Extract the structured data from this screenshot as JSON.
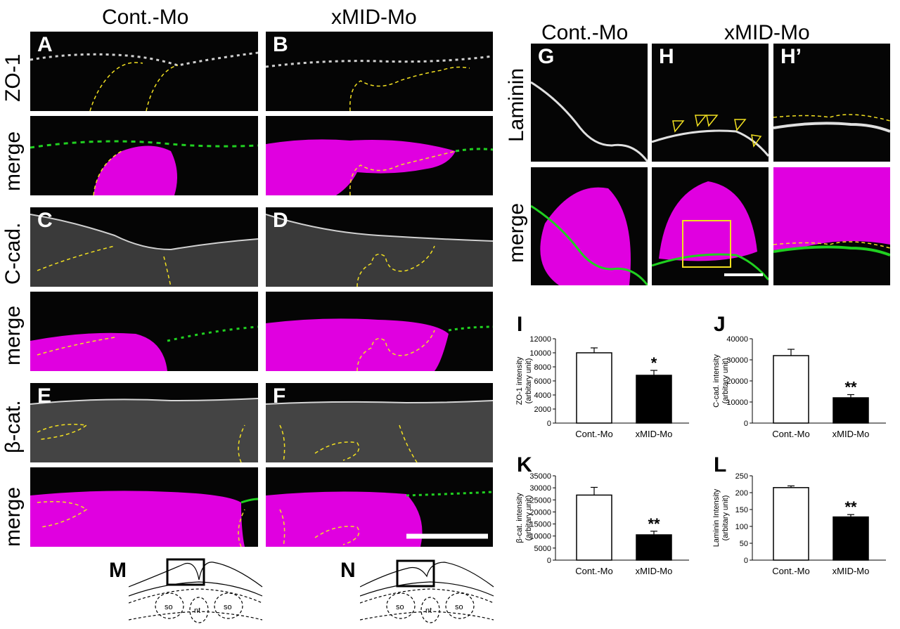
{
  "columns": {
    "left_ctrl": "Cont.-Mo",
    "left_mid": "xMID-Mo",
    "right_ctrl": "Cont.-Mo",
    "right_mid": "xMID-Mo"
  },
  "row_labels": {
    "zo1": "ZO-1",
    "merge": "merge",
    "ccad": "C-cad.",
    "bcat": "β-cat.",
    "laminin": "Laminin"
  },
  "panel_letters": {
    "A": "A",
    "B": "B",
    "C": "C",
    "D": "D",
    "E": "E",
    "F": "F",
    "G": "G",
    "H": "H",
    "Hp": "H’",
    "I": "I",
    "J": "J",
    "K": "K",
    "L": "L",
    "M": "M",
    "N": "N"
  },
  "schematic_labels": {
    "so": "so",
    "nt": "nt"
  },
  "colors": {
    "magenta": "#e000e0",
    "green": "#20d020",
    "yellow": "#f2e020",
    "gray": "#cfcfcf"
  },
  "chart_data": [
    {
      "id": "I",
      "type": "bar",
      "categories": [
        "Cont.-Mo",
        "xMID-Mo"
      ],
      "values": [
        10000,
        6800
      ],
      "errors": [
        700,
        700
      ],
      "fills": [
        "#ffffff",
        "#000000"
      ],
      "significance": [
        "",
        "*"
      ],
      "ylabel": [
        "ZO-1 intensity",
        "(arbitary unit)"
      ],
      "ylim": [
        0,
        12000
      ],
      "yticks": [
        "0",
        "2000",
        "4000",
        "6000",
        "8000",
        "10000",
        "12000"
      ]
    },
    {
      "id": "J",
      "type": "bar",
      "categories": [
        "Cont.-Mo",
        "xMID-Mo"
      ],
      "values": [
        32000,
        12000
      ],
      "errors": [
        3000,
        1500
      ],
      "fills": [
        "#ffffff",
        "#000000"
      ],
      "significance": [
        "",
        "**"
      ],
      "ylabel": [
        "C-cad. intensity",
        "(arbitary unit)"
      ],
      "ylim": [
        0,
        40000
      ],
      "yticks": [
        "0",
        "10000",
        "20000",
        "30000",
        "40000"
      ]
    },
    {
      "id": "K",
      "type": "bar",
      "categories": [
        "Cont.-Mo",
        "xMID-Mo"
      ],
      "values": [
        27000,
        10500
      ],
      "errors": [
        3200,
        1500
      ],
      "fills": [
        "#ffffff",
        "#000000"
      ],
      "significance": [
        "",
        "**"
      ],
      "ylabel": [
        "β-cat. intensity",
        "(arbitary unit)"
      ],
      "ylim": [
        0,
        35000
      ],
      "yticks": [
        "0",
        "5000",
        "10000",
        "15000",
        "20000",
        "25000",
        "30000",
        "35000"
      ]
    },
    {
      "id": "L",
      "type": "bar",
      "categories": [
        "Cont.-Mo",
        "xMID-Mo"
      ],
      "values": [
        215,
        128
      ],
      "errors": [
        5,
        7
      ],
      "fills": [
        "#ffffff",
        "#000000"
      ],
      "significance": [
        "",
        "**"
      ],
      "ylabel": [
        "Laminin Intensity",
        "(arbitary unit)"
      ],
      "ylim": [
        0,
        250
      ],
      "yticks": [
        "0",
        "50",
        "100",
        "150",
        "200",
        "250"
      ]
    }
  ]
}
